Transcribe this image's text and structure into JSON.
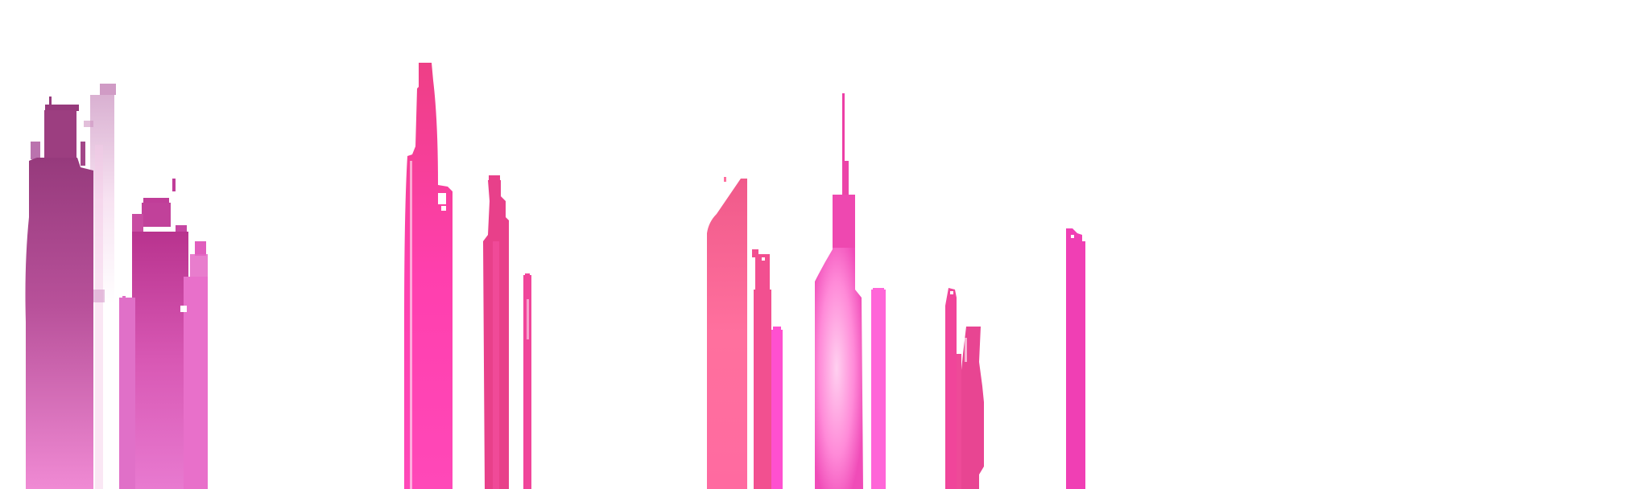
{
  "scene": {
    "background": "#ffffff",
    "palette": {
      "deep_magenta": "#9b3a7d",
      "magenta": "#c2409a",
      "orchid": "#e06cc4",
      "hot_pink": "#ff40b4",
      "crimson_pink": "#ee3f8e",
      "coral_pink": "#ff6f9f",
      "pale_pink": "#ffb3e6",
      "rose": "#ff4fd0"
    },
    "towers": [
      {
        "name": "far-left-dark-tower",
        "color": "#a7458f"
      },
      {
        "name": "far-left-faded-tower",
        "color": "#d8a2cc"
      },
      {
        "name": "left-magenta-block",
        "color": "#c94aa4"
      },
      {
        "name": "left-orchid-tower",
        "color": "#e866c8"
      },
      {
        "name": "center-left-spire-tower",
        "color": "#f74aa0"
      },
      {
        "name": "center-left-slim-tower",
        "color": "#e8408a"
      },
      {
        "name": "center-left-needle",
        "color": "#f0459a"
      },
      {
        "name": "center-slanted-tower",
        "color": "#ff6b9c"
      },
      {
        "name": "center-stepped-tower",
        "color": "#f24f90"
      },
      {
        "name": "center-low-block",
        "color": "#ff50d0"
      },
      {
        "name": "center-right-antenna-tower",
        "color": "#ff60c8"
      },
      {
        "name": "center-right-slim-tower",
        "color": "#ff66d8"
      },
      {
        "name": "right-thin-tower",
        "color": "#f0459a"
      },
      {
        "name": "right-ragged-tower",
        "color": "#e84592"
      },
      {
        "name": "far-right-tower",
        "color": "#f03fb4"
      }
    ]
  }
}
